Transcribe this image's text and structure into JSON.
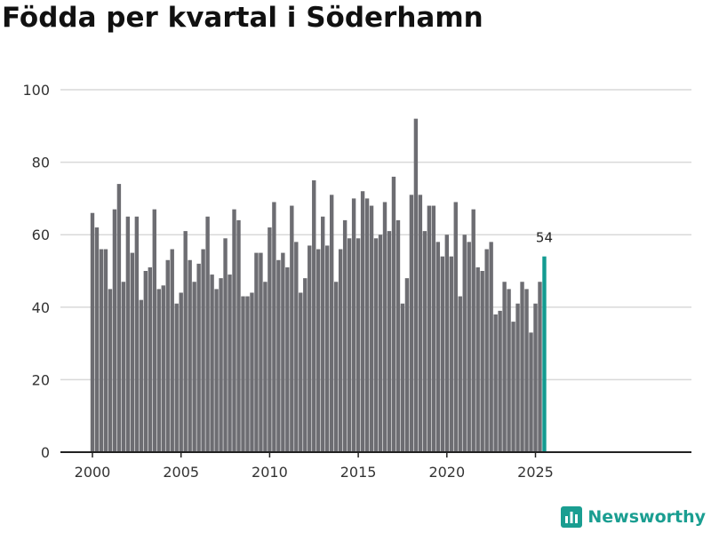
{
  "title": "Födda per kvartal i Söderhamn",
  "brand": {
    "name": "Newsworthy",
    "icon": "newsworthy-logo-icon"
  },
  "colors": {
    "bar": "#6d6d72",
    "highlight": "#139b91",
    "grid": "#d9d9d9",
    "axis": "#222222",
    "brand": "#1a9e91"
  },
  "chart_data": {
    "type": "bar",
    "title": "Födda per kvartal i Söderhamn",
    "xlabel": "",
    "ylabel": "",
    "ylim": [
      0,
      100
    ],
    "yticks": [
      0,
      20,
      40,
      60,
      80,
      100
    ],
    "xticks": [
      {
        "label": "2000",
        "year": 2000
      },
      {
        "label": "2005",
        "year": 2005
      },
      {
        "label": "2010",
        "year": 2010
      },
      {
        "label": "2015",
        "year": 2015
      },
      {
        "label": "2020",
        "year": 2020
      },
      {
        "label": "2025",
        "year": 2025
      }
    ],
    "start_year": 2000,
    "start_quarter": 1,
    "values": [
      66,
      62,
      56,
      56,
      45,
      67,
      74,
      47,
      65,
      55,
      65,
      42,
      50,
      51,
      67,
      45,
      46,
      53,
      56,
      41,
      44,
      61,
      53,
      47,
      52,
      56,
      65,
      49,
      45,
      48,
      59,
      49,
      67,
      64,
      43,
      43,
      44,
      55,
      55,
      47,
      62,
      69,
      53,
      55,
      51,
      68,
      58,
      44,
      48,
      57,
      75,
      56,
      65,
      57,
      71,
      47,
      56,
      64,
      59,
      70,
      59,
      72,
      70,
      68,
      59,
      60,
      69,
      61,
      76,
      64,
      41,
      48,
      71,
      92,
      71,
      61,
      68,
      68,
      58,
      54,
      60,
      54,
      69,
      43,
      60,
      58,
      67,
      51,
      50,
      56,
      58,
      38,
      39,
      47,
      45,
      36,
      41,
      47,
      45,
      33,
      41,
      47,
      54
    ],
    "highlight_last": true,
    "annotation": "54",
    "grid": true
  }
}
